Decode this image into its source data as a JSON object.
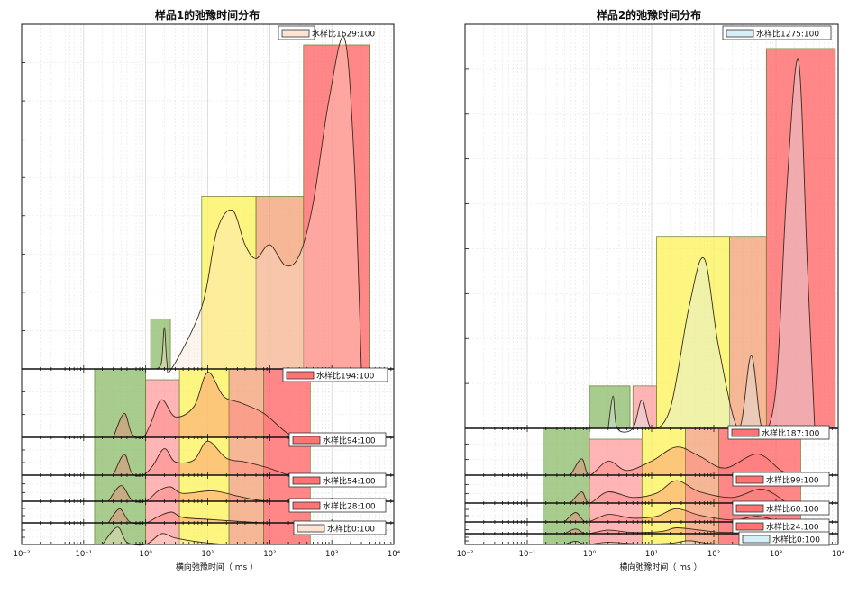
{
  "chart_data": [
    {
      "type": "area",
      "title": "样品1的弛豫时间分布",
      "xlabel": "横向弛豫时间（ ms ）",
      "xscale": "log",
      "xlim": [
        0.01,
        10000
      ],
      "x_ticks": [
        "10⁻²",
        "10⁻¹",
        "10⁰",
        "10¹",
        "10²",
        "10³",
        "10⁴"
      ],
      "grid": true,
      "legend_position": "right",
      "subplots": [
        {
          "name": "水样比1629:100",
          "fill": "#fde3d2",
          "bands": [
            {
              "x_range": [
                1.2,
                2.5
              ],
              "color": "#8fbc6e",
              "level": 0.145
            },
            {
              "x_range": [
                8,
                60
              ],
              "color": "#fbf25b",
              "level": 0.5
            },
            {
              "x_range": [
                60,
                350
              ],
              "color": "#f3a37a",
              "level": 0.5
            },
            {
              "x_range": [
                350,
                4000
              ],
              "color": "#ff6565",
              "level": 0.94
            }
          ],
          "curve": [
            [
              1.5,
              0
            ],
            [
              1.8,
              0.02
            ],
            [
              2.0,
              0.12
            ],
            [
              2.2,
              0.02
            ],
            [
              2.6,
              0
            ],
            [
              8,
              0.18
            ],
            [
              14,
              0.4
            ],
            [
              25,
              0.46
            ],
            [
              40,
              0.36
            ],
            [
              60,
              0.32
            ],
            [
              100,
              0.36
            ],
            [
              180,
              0.3
            ],
            [
              300,
              0.33
            ],
            [
              500,
              0.48
            ],
            [
              900,
              0.78
            ],
            [
              1600,
              0.96
            ],
            [
              2300,
              0.6
            ],
            [
              3000,
              0
            ]
          ]
        },
        {
          "name": "水样比194:100",
          "fill": "#ff7373",
          "bands": [
            {
              "x_range": [
                0.15,
                1.0
              ],
              "color": "#8fbc6e",
              "level": 1.0
            },
            {
              "x_range": [
                1.0,
                3.5
              ],
              "color": "#ffa0a0",
              "level": 0.7
            },
            {
              "x_range": [
                3.5,
                22
              ],
              "color": "#fbf25b",
              "level": 1.0
            },
            {
              "x_range": [
                22,
                80
              ],
              "color": "#f3a37a",
              "level": 1.0
            },
            {
              "x_range": [
                80,
                450
              ],
              "color": "#ff6565",
              "level": 1.0
            }
          ],
          "curve": [
            [
              0.3,
              0
            ],
            [
              0.45,
              0.35
            ],
            [
              0.6,
              0.05
            ],
            [
              0.9,
              0
            ],
            [
              1.2,
              0.2
            ],
            [
              1.8,
              0.55
            ],
            [
              3,
              0.3
            ],
            [
              6,
              0.45
            ],
            [
              10,
              0.95
            ],
            [
              18,
              0.6
            ],
            [
              35,
              0.5
            ],
            [
              80,
              0.35
            ],
            [
              200,
              0.05
            ],
            [
              350,
              0
            ]
          ]
        },
        {
          "name": "水样比94:100",
          "fill": "#ff7373",
          "curve": [
            [
              0.3,
              0
            ],
            [
              0.45,
              0.55
            ],
            [
              0.6,
              0.05
            ],
            [
              0.9,
              0
            ],
            [
              1.3,
              0.25
            ],
            [
              2.0,
              0.7
            ],
            [
              3,
              0.35
            ],
            [
              6,
              0.4
            ],
            [
              10,
              0.9
            ],
            [
              20,
              0.45
            ],
            [
              40,
              0.35
            ],
            [
              90,
              0.2
            ],
            [
              200,
              0
            ]
          ]
        },
        {
          "name": "水样比54:100",
          "fill": "#ff7373",
          "curve": [
            [
              0.25,
              0
            ],
            [
              0.4,
              0.6
            ],
            [
              0.6,
              0.05
            ],
            [
              1.0,
              0
            ],
            [
              1.6,
              0.4
            ],
            [
              2.5,
              0.55
            ],
            [
              4,
              0.3
            ],
            [
              12,
              0.4
            ],
            [
              30,
              0.2
            ],
            [
              60,
              0.05
            ],
            [
              100,
              0
            ]
          ]
        },
        {
          "name": "水样比28:100",
          "fill": "#ff7373",
          "curve": [
            [
              0.25,
              0
            ],
            [
              0.38,
              0.65
            ],
            [
              0.55,
              0.05
            ],
            [
              1.0,
              0
            ],
            [
              1.6,
              0.3
            ],
            [
              2.6,
              0.5
            ],
            [
              4,
              0.25
            ],
            [
              12,
              0.15
            ],
            [
              40,
              0.05
            ],
            [
              80,
              0
            ]
          ]
        },
        {
          "name": "水样比0:100",
          "fill": "#fde3d2",
          "curve": [
            [
              0.2,
              0
            ],
            [
              0.35,
              0.8
            ],
            [
              0.5,
              0.1
            ],
            [
              1.0,
              0
            ],
            [
              1.8,
              0.5
            ],
            [
              3,
              0.3
            ],
            [
              8,
              0.1
            ],
            [
              20,
              0
            ]
          ]
        }
      ]
    },
    {
      "type": "area",
      "title": "样品2的弛豫时间分布",
      "xlabel": "横向弛豫时间（ ms ）",
      "xscale": "log",
      "xlim": [
        0.01,
        10000
      ],
      "x_ticks": [
        "10⁻²",
        "10⁻¹",
        "10⁰",
        "10¹",
        "10²",
        "10³",
        "10⁴"
      ],
      "grid": true,
      "legend_position": "right",
      "subplots": [
        {
          "name": "水样比1275:100",
          "fill": "#d6eef6",
          "bands": [
            {
              "x_range": [
                1.0,
                4.5
              ],
              "color": "#8fbc6e",
              "level": 0.105
            },
            {
              "x_range": [
                5,
                12
              ],
              "color": "#ffa0a0",
              "level": 0.105
            },
            {
              "x_range": [
                12,
                180
              ],
              "color": "#fbf25b",
              "level": 0.475
            },
            {
              "x_range": [
                180,
                700
              ],
              "color": "#f3a37a",
              "level": 0.475
            },
            {
              "x_range": [
                700,
                9000
              ],
              "color": "#ff6565",
              "level": 0.94
            }
          ],
          "curve": [
            [
              2.0,
              0
            ],
            [
              2.4,
              0.08
            ],
            [
              2.8,
              0
            ],
            [
              5,
              0
            ],
            [
              7,
              0.07
            ],
            [
              10,
              0
            ],
            [
              20,
              0.05
            ],
            [
              40,
              0.3
            ],
            [
              70,
              0.42
            ],
            [
              120,
              0.2
            ],
            [
              250,
              0
            ],
            [
              400,
              0.18
            ],
            [
              600,
              0
            ],
            [
              1000,
              0.1
            ],
            [
              1500,
              0.6
            ],
            [
              2300,
              0.91
            ],
            [
              3200,
              0.4
            ],
            [
              4200,
              0
            ]
          ]
        },
        {
          "name": "水样比187:100",
          "fill": "#ff7373",
          "bands": [
            {
              "x_range": [
                0.18,
                1.0
              ],
              "color": "#8fbc6e",
              "level": 1.0
            },
            {
              "x_range": [
                1.0,
                7
              ],
              "color": "#ffa0a0",
              "level": 0.7
            },
            {
              "x_range": [
                7,
                35
              ],
              "color": "#fbf25b",
              "level": 1.0
            },
            {
              "x_range": [
                35,
                120
              ],
              "color": "#f3a37a",
              "level": 1.0
            },
            {
              "x_range": [
                120,
                2500
              ],
              "color": "#ff6565",
              "level": 1.0
            }
          ],
          "curve": [
            [
              0.5,
              0
            ],
            [
              0.75,
              0.35
            ],
            [
              1.0,
              0
            ],
            [
              2,
              0.3
            ],
            [
              4,
              0.1
            ],
            [
              10,
              0.3
            ],
            [
              25,
              0.6
            ],
            [
              60,
              0.4
            ],
            [
              150,
              0.15
            ],
            [
              500,
              0.45
            ],
            [
              1200,
              0.1
            ],
            [
              2000,
              0
            ]
          ]
        },
        {
          "name": "水样比99:100",
          "fill": "#ff7373",
          "curve": [
            [
              0.5,
              0
            ],
            [
              0.75,
              0.4
            ],
            [
              1.0,
              0
            ],
            [
              2,
              0.4
            ],
            [
              5,
              0.2
            ],
            [
              12,
              0.35
            ],
            [
              25,
              0.8
            ],
            [
              60,
              0.4
            ],
            [
              200,
              0.2
            ],
            [
              600,
              0.5
            ],
            [
              1500,
              0
            ]
          ]
        },
        {
          "name": "水样比60:100",
          "fill": "#ff7373",
          "curve": [
            [
              0.4,
              0
            ],
            [
              0.6,
              0.5
            ],
            [
              0.9,
              0
            ],
            [
              2,
              0.4
            ],
            [
              5,
              0.2
            ],
            [
              12,
              0.3
            ],
            [
              25,
              0.7
            ],
            [
              60,
              0.35
            ],
            [
              200,
              0.1
            ],
            [
              500,
              0.3
            ],
            [
              1200,
              0
            ]
          ]
        },
        {
          "name": "水样比24:100",
          "fill": "#ff7373",
          "curve": [
            [
              0.4,
              0
            ],
            [
              0.6,
              0.4
            ],
            [
              0.9,
              0
            ],
            [
              2,
              0.3
            ],
            [
              5,
              0.1
            ],
            [
              15,
              0.2
            ],
            [
              25,
              0.5
            ],
            [
              60,
              0.3
            ],
            [
              150,
              0.1
            ],
            [
              400,
              0.2
            ],
            [
              1000,
              0
            ]
          ]
        },
        {
          "name": "水样比0:100",
          "fill": "#d6eef6",
          "curve": [
            [
              0.4,
              0
            ],
            [
              0.6,
              0.3
            ],
            [
              0.9,
              0
            ],
            [
              2,
              0.2
            ],
            [
              6,
              0.05
            ],
            [
              20,
              0.1
            ],
            [
              40,
              0.35
            ],
            [
              80,
              0.1
            ],
            [
              200,
              0
            ]
          ]
        }
      ]
    }
  ]
}
